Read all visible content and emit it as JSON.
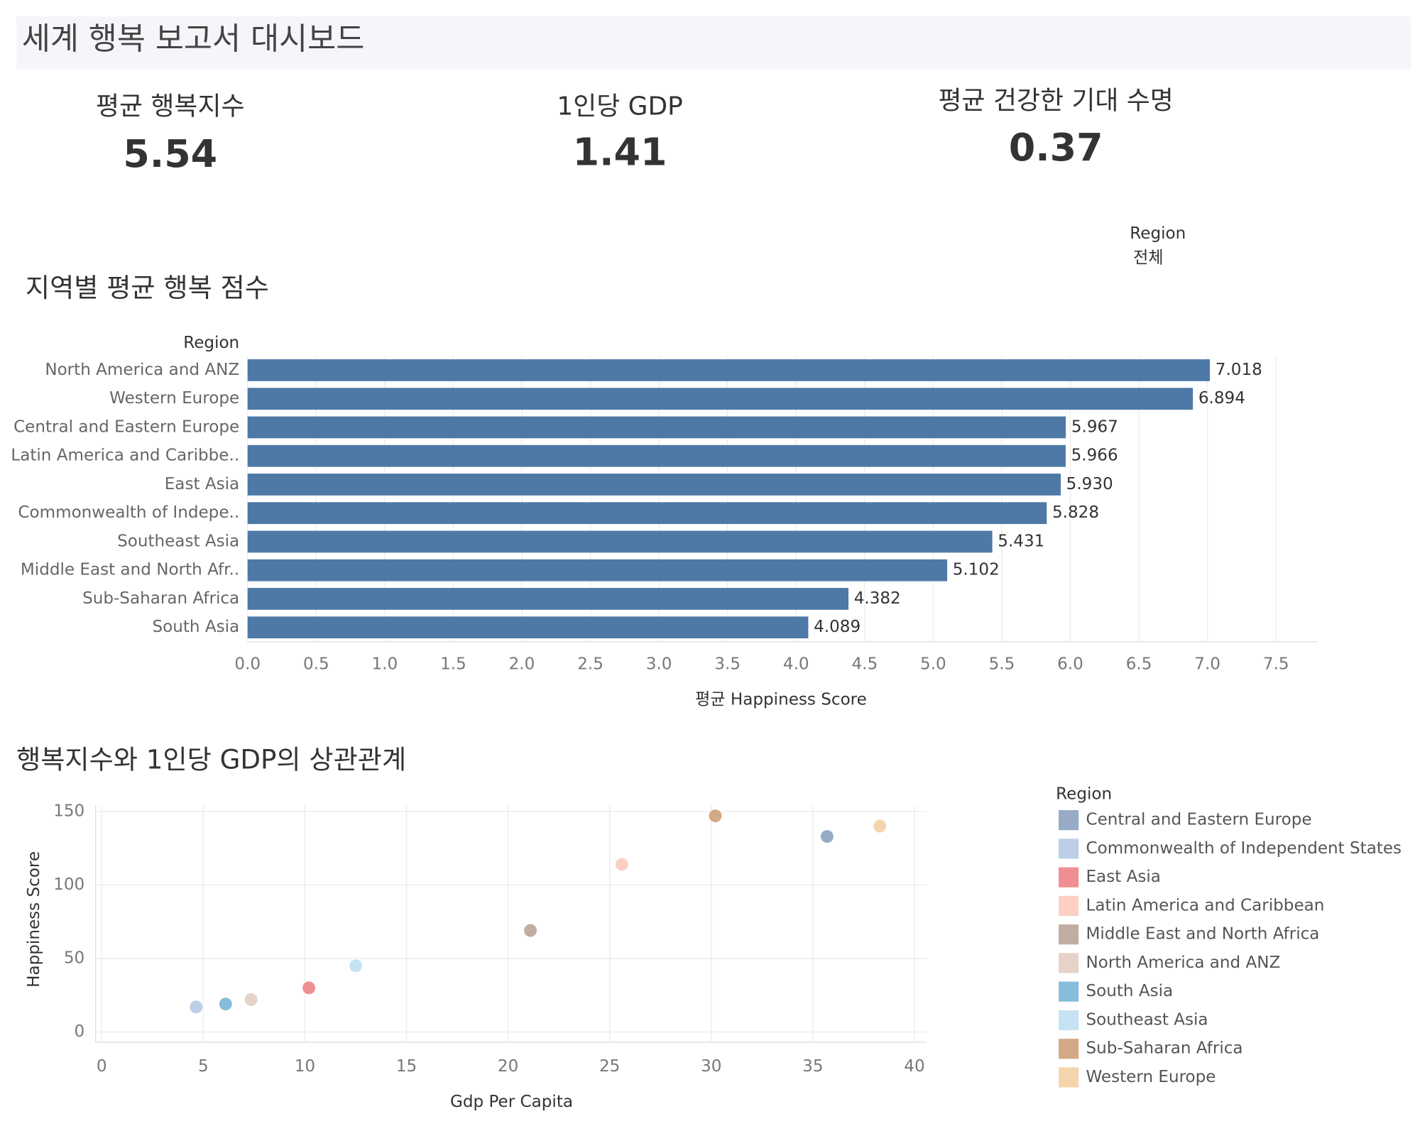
{
  "header": {
    "title": "세계 행복 보고서 대시보드"
  },
  "kpis": [
    {
      "label": "평균 행복지수",
      "value": 5.54
    },
    {
      "label": "1인당 GDP",
      "value": 1.41
    },
    {
      "label": "평균 건강한 기대 수명",
      "value": 0.37
    }
  ],
  "filter": {
    "label": "Region",
    "value": "전체"
  },
  "chart_data": [
    {
      "type": "bar",
      "horizontal": true,
      "title": "지역별 평균 행복 점수",
      "category_title": "Region",
      "x_label": "평균 Happiness Score",
      "color": "#4e79a7",
      "grid": true,
      "categories": [
        "North America and ANZ",
        "Western Europe",
        "Central and Eastern Europe",
        "Latin America and Caribbe..",
        "East Asia",
        "Commonwealth of Indepe..",
        "Southeast Asia",
        "Middle East and North Afr..",
        "Sub-Saharan Africa",
        "South Asia"
      ],
      "values": [
        7.018,
        6.894,
        5.967,
        5.966,
        5.93,
        5.828,
        5.431,
        5.102,
        4.382,
        4.089
      ],
      "value_labels": [
        "7.018",
        "6.894",
        "5.967",
        "5.966",
        "5.930",
        "5.828",
        "5.431",
        "5.102",
        "4.382",
        "4.089"
      ],
      "xlim": [
        0,
        7.8
      ],
      "xticks": [
        {
          "value": 0,
          "label": "0.0"
        },
        {
          "value": 0.5,
          "label": "0.5"
        },
        {
          "value": 1,
          "label": "1.0"
        },
        {
          "value": 1.5,
          "label": "1.5"
        },
        {
          "value": 2,
          "label": "2.0"
        },
        {
          "value": 2.5,
          "label": "2.5"
        },
        {
          "value": 3,
          "label": "3.0"
        },
        {
          "value": 3.5,
          "label": "3.5"
        },
        {
          "value": 4,
          "label": "4.0"
        },
        {
          "value": 4.5,
          "label": "4.5"
        },
        {
          "value": 5,
          "label": "5.0"
        },
        {
          "value": 5.5,
          "label": "5.5"
        },
        {
          "value": 6,
          "label": "6.0"
        },
        {
          "value": 6.5,
          "label": "6.5"
        },
        {
          "value": 7,
          "label": "7.0"
        },
        {
          "value": 7.5,
          "label": "7.5"
        }
      ]
    },
    {
      "type": "scatter",
      "title": "행복지수와 1인당 GDP의 상관관계",
      "x_label": "Gdp Per Capita",
      "y_label": "Happiness Score",
      "legend_title": "Region",
      "grid": true,
      "xlim": [
        -0.3,
        40.6
      ],
      "ylim": [
        -7,
        154
      ],
      "xticks": [
        0,
        5,
        10,
        15,
        20,
        25,
        30,
        35,
        40
      ],
      "yticks": [
        0,
        50,
        100,
        150
      ],
      "series": [
        {
          "name": "Central and Eastern Europe",
          "color": "#97abc6",
          "x": [
            35.7
          ],
          "values": [
            133
          ]
        },
        {
          "name": "Commonwealth of Independent States",
          "color": "#bccfe7",
          "x": [
            4.65
          ],
          "values": [
            17
          ]
        },
        {
          "name": "East Asia",
          "color": "#f08f93",
          "x": [
            10.2
          ],
          "values": [
            30
          ]
        },
        {
          "name": "Latin America and Caribbean",
          "color": "#fdd0c3",
          "x": [
            25.6
          ],
          "values": [
            114
          ]
        },
        {
          "name": "Middle East and North Africa",
          "color": "#c2ada2",
          "x": [
            21.1
          ],
          "values": [
            69
          ]
        },
        {
          "name": "North America and ANZ",
          "color": "#e6d2c9",
          "x": [
            7.35
          ],
          "values": [
            22
          ]
        },
        {
          "name": "South Asia",
          "color": "#86bcdc",
          "x": [
            6.1
          ],
          "values": [
            19
          ]
        },
        {
          "name": "Southeast Asia",
          "color": "#c5e3f2",
          "x": [
            12.5
          ],
          "values": [
            45
          ]
        },
        {
          "name": "Sub-Saharan Africa",
          "color": "#d4a985",
          "x": [
            30.2
          ],
          "values": [
            147
          ]
        },
        {
          "name": "Western Europe",
          "color": "#f5d4ad",
          "x": [
            38.3
          ],
          "values": [
            140
          ]
        }
      ]
    }
  ]
}
